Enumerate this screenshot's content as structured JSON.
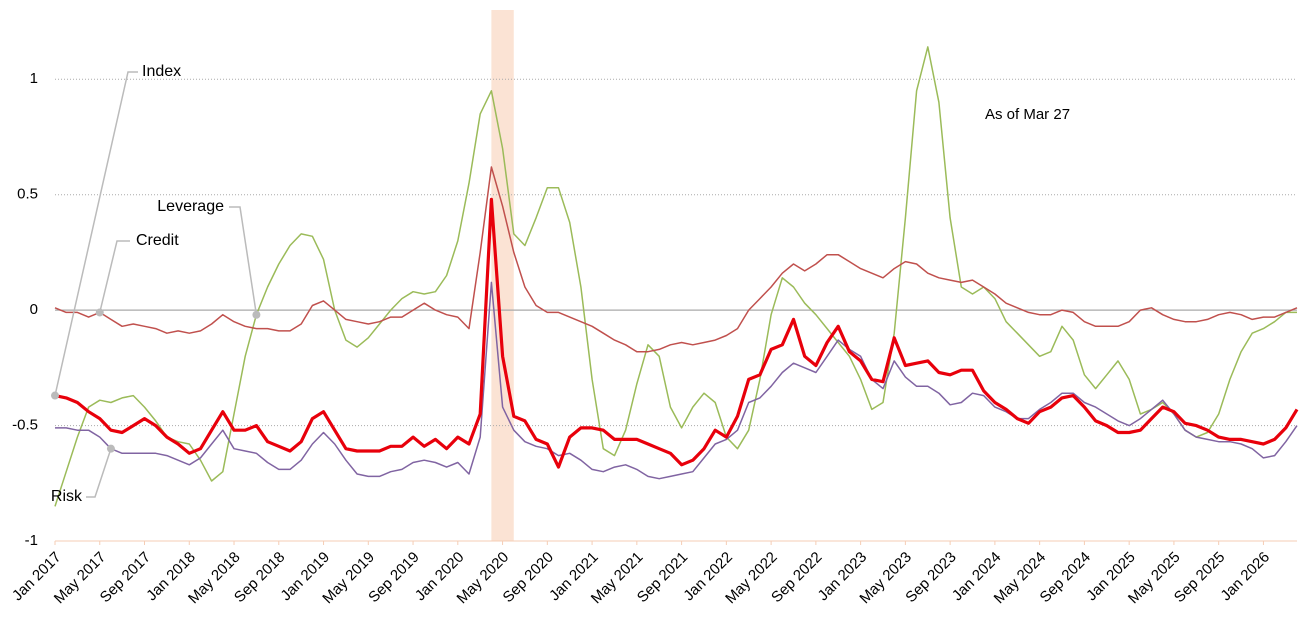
{
  "chart_data": {
    "type": "line",
    "annotation": "As of Mar 27",
    "highlight": [
      "2020-04",
      "2020-06"
    ],
    "x": [
      "2017-01",
      "2017-02",
      "2017-03",
      "2017-04",
      "2017-05",
      "2017-06",
      "2017-07",
      "2017-08",
      "2017-09",
      "2017-10",
      "2017-11",
      "2017-12",
      "2018-01",
      "2018-02",
      "2018-03",
      "2018-04",
      "2018-05",
      "2018-06",
      "2018-07",
      "2018-08",
      "2018-09",
      "2018-10",
      "2018-11",
      "2018-12",
      "2019-01",
      "2019-02",
      "2019-03",
      "2019-04",
      "2019-05",
      "2019-06",
      "2019-07",
      "2019-08",
      "2019-09",
      "2019-10",
      "2019-11",
      "2019-12",
      "2020-01",
      "2020-02",
      "2020-03",
      "2020-04",
      "2020-05",
      "2020-06",
      "2020-07",
      "2020-08",
      "2020-09",
      "2020-10",
      "2020-11",
      "2020-12",
      "2021-01",
      "2021-02",
      "2021-03",
      "2021-04",
      "2021-05",
      "2021-06",
      "2021-07",
      "2021-08",
      "2021-09",
      "2021-10",
      "2021-11",
      "2021-12",
      "2022-01",
      "2022-02",
      "2022-03",
      "2022-04",
      "2022-05",
      "2022-06",
      "2022-07",
      "2022-08",
      "2022-09",
      "2022-10",
      "2022-11",
      "2022-12",
      "2023-01",
      "2023-02",
      "2023-03",
      "2023-04",
      "2023-05",
      "2023-06",
      "2023-07",
      "2023-08",
      "2023-09",
      "2023-10",
      "2023-11",
      "2023-12",
      "2024-01",
      "2024-02",
      "2024-03",
      "2024-04",
      "2024-05",
      "2024-06",
      "2024-07",
      "2024-08",
      "2024-09",
      "2024-10",
      "2024-11",
      "2024-12",
      "2025-01",
      "2025-02",
      "2025-03",
      "2025-04",
      "2025-05",
      "2025-06",
      "2025-07",
      "2025-08",
      "2025-09",
      "2025-10",
      "2025-11",
      "2025-12",
      "2026-01",
      "2026-02",
      "2026-03",
      "2026-04"
    ],
    "series": [
      {
        "name": "Index",
        "color": "#e8000b",
        "values": [
          -0.37,
          -0.38,
          -0.4,
          -0.44,
          -0.47,
          -0.52,
          -0.53,
          -0.5,
          -0.47,
          -0.5,
          -0.55,
          -0.58,
          -0.62,
          -0.6,
          -0.52,
          -0.44,
          -0.52,
          -0.52,
          -0.5,
          -0.57,
          -0.59,
          -0.61,
          -0.57,
          -0.47,
          -0.44,
          -0.52,
          -0.6,
          -0.61,
          -0.61,
          -0.61,
          -0.59,
          -0.59,
          -0.55,
          -0.59,
          -0.56,
          -0.6,
          -0.55,
          -0.58,
          -0.45,
          0.48,
          -0.2,
          -0.46,
          -0.48,
          -0.56,
          -0.58,
          -0.68,
          -0.55,
          -0.51,
          -0.51,
          -0.52,
          -0.56,
          -0.56,
          -0.56,
          -0.58,
          -0.6,
          -0.62,
          -0.67,
          -0.65,
          -0.6,
          -0.52,
          -0.55,
          -0.46,
          -0.3,
          -0.28,
          -0.17,
          -0.15,
          -0.04,
          -0.2,
          -0.24,
          -0.14,
          -0.07,
          -0.18,
          -0.22,
          -0.3,
          -0.31,
          -0.12,
          -0.24,
          -0.23,
          -0.22,
          -0.27,
          -0.28,
          -0.26,
          -0.26,
          -0.35,
          -0.4,
          -0.43,
          -0.47,
          -0.49,
          -0.44,
          -0.42,
          -0.38,
          -0.37,
          -0.42,
          -0.48,
          -0.5,
          -0.53,
          -0.53,
          -0.52,
          -0.47,
          -0.42,
          -0.44,
          -0.49,
          -0.5,
          -0.52,
          -0.55,
          -0.56,
          -0.56,
          -0.57,
          -0.58,
          -0.56,
          -0.51,
          -0.43
        ]
      },
      {
        "name": "Credit",
        "color": "#c0504d",
        "values": [
          0.01,
          -0.01,
          -0.01,
          -0.03,
          -0.01,
          -0.04,
          -0.07,
          -0.06,
          -0.07,
          -0.08,
          -0.1,
          -0.09,
          -0.1,
          -0.09,
          -0.06,
          -0.02,
          -0.05,
          -0.07,
          -0.08,
          -0.08,
          -0.09,
          -0.09,
          -0.06,
          0.02,
          0.04,
          0.0,
          -0.04,
          -0.05,
          -0.06,
          -0.05,
          -0.03,
          -0.03,
          0.0,
          0.03,
          0.0,
          -0.02,
          -0.03,
          -0.08,
          0.25,
          0.62,
          0.45,
          0.25,
          0.1,
          0.02,
          -0.01,
          -0.01,
          -0.03,
          -0.05,
          -0.07,
          -0.1,
          -0.13,
          -0.15,
          -0.18,
          -0.18,
          -0.17,
          -0.15,
          -0.14,
          -0.15,
          -0.14,
          -0.13,
          -0.11,
          -0.08,
          0.0,
          0.05,
          0.1,
          0.16,
          0.2,
          0.17,
          0.2,
          0.24,
          0.24,
          0.21,
          0.18,
          0.16,
          0.14,
          0.18,
          0.21,
          0.2,
          0.16,
          0.14,
          0.13,
          0.12,
          0.13,
          0.1,
          0.07,
          0.03,
          0.01,
          -0.01,
          -0.02,
          -0.02,
          0.0,
          -0.01,
          -0.05,
          -0.07,
          -0.07,
          -0.07,
          -0.05,
          0.0,
          0.01,
          -0.02,
          -0.04,
          -0.05,
          -0.05,
          -0.04,
          -0.02,
          -0.01,
          -0.02,
          -0.04,
          -0.03,
          -0.03,
          -0.01,
          0.01
        ]
      },
      {
        "name": "Leverage",
        "color": "#9bbb59",
        "values": [
          -0.85,
          -0.7,
          -0.55,
          -0.42,
          -0.39,
          -0.4,
          -0.38,
          -0.37,
          -0.42,
          -0.48,
          -0.55,
          -0.57,
          -0.58,
          -0.65,
          -0.74,
          -0.7,
          -0.45,
          -0.2,
          -0.02,
          0.1,
          0.2,
          0.28,
          0.33,
          0.32,
          0.22,
          0.0,
          -0.13,
          -0.16,
          -0.12,
          -0.06,
          0.0,
          0.05,
          0.08,
          0.07,
          0.08,
          0.15,
          0.3,
          0.55,
          0.85,
          0.95,
          0.7,
          0.33,
          0.28,
          0.4,
          0.53,
          0.53,
          0.38,
          0.1,
          -0.3,
          -0.6,
          -0.63,
          -0.52,
          -0.32,
          -0.15,
          -0.2,
          -0.42,
          -0.51,
          -0.42,
          -0.36,
          -0.4,
          -0.55,
          -0.6,
          -0.52,
          -0.3,
          -0.02,
          0.14,
          0.1,
          0.03,
          -0.02,
          -0.08,
          -0.14,
          -0.2,
          -0.3,
          -0.43,
          -0.4,
          -0.1,
          0.4,
          0.95,
          1.14,
          0.9,
          0.4,
          0.1,
          0.07,
          0.1,
          0.05,
          -0.05,
          -0.1,
          -0.15,
          -0.2,
          -0.18,
          -0.07,
          -0.13,
          -0.28,
          -0.34,
          -0.28,
          -0.22,
          -0.3,
          -0.45,
          -0.43,
          -0.4,
          -0.45,
          -0.52,
          -0.55,
          -0.53,
          -0.45,
          -0.3,
          -0.18,
          -0.1,
          -0.08,
          -0.05,
          -0.01,
          -0.01
        ]
      },
      {
        "name": "Risk",
        "color": "#8064a2",
        "values": [
          -0.51,
          -0.51,
          -0.52,
          -0.52,
          -0.55,
          -0.6,
          -0.62,
          -0.62,
          -0.62,
          -0.62,
          -0.63,
          -0.65,
          -0.67,
          -0.64,
          -0.58,
          -0.52,
          -0.6,
          -0.61,
          -0.62,
          -0.66,
          -0.69,
          -0.69,
          -0.65,
          -0.58,
          -0.53,
          -0.58,
          -0.65,
          -0.71,
          -0.72,
          -0.72,
          -0.7,
          -0.69,
          -0.66,
          -0.65,
          -0.66,
          -0.68,
          -0.66,
          -0.71,
          -0.55,
          0.12,
          -0.42,
          -0.52,
          -0.57,
          -0.59,
          -0.6,
          -0.63,
          -0.62,
          -0.65,
          -0.69,
          -0.7,
          -0.68,
          -0.67,
          -0.69,
          -0.72,
          -0.73,
          -0.72,
          -0.71,
          -0.7,
          -0.64,
          -0.58,
          -0.56,
          -0.52,
          -0.4,
          -0.38,
          -0.33,
          -0.27,
          -0.23,
          -0.25,
          -0.27,
          -0.2,
          -0.13,
          -0.17,
          -0.2,
          -0.3,
          -0.34,
          -0.22,
          -0.29,
          -0.33,
          -0.33,
          -0.36,
          -0.41,
          -0.4,
          -0.36,
          -0.37,
          -0.42,
          -0.44,
          -0.47,
          -0.47,
          -0.43,
          -0.4,
          -0.36,
          -0.36,
          -0.4,
          -0.42,
          -0.45,
          -0.48,
          -0.5,
          -0.47,
          -0.43,
          -0.39,
          -0.45,
          -0.52,
          -0.55,
          -0.56,
          -0.57,
          -0.57,
          -0.58,
          -0.6,
          -0.64,
          -0.63,
          -0.57,
          -0.5
        ]
      }
    ],
    "xlim": [
      "2017-01",
      "2026-04"
    ],
    "xticks": [
      {
        "value": "2017-01",
        "label": "Jan 2017"
      },
      {
        "value": "2017-05",
        "label": "May 2017"
      },
      {
        "value": "2017-09",
        "label": "Sep 2017"
      },
      {
        "value": "2018-01",
        "label": "Jan 2018"
      },
      {
        "value": "2018-05",
        "label": "May 2018"
      },
      {
        "value": "2018-09",
        "label": "Sep 2018"
      },
      {
        "value": "2019-01",
        "label": "Jan 2019"
      },
      {
        "value": "2019-05",
        "label": "May 2019"
      },
      {
        "value": "2019-09",
        "label": "Sep 2019"
      },
      {
        "value": "2020-01",
        "label": "Jan 2020"
      },
      {
        "value": "2020-05",
        "label": "May 2020"
      },
      {
        "value": "2020-09",
        "label": "Sep 2020"
      },
      {
        "value": "2021-01",
        "label": "Jan 2021"
      },
      {
        "value": "2021-05",
        "label": "May 2021"
      },
      {
        "value": "2021-09",
        "label": "Sep 2021"
      },
      {
        "value": "2022-01",
        "label": "Jan 2022"
      },
      {
        "value": "2022-05",
        "label": "May 2022"
      },
      {
        "value": "2022-09",
        "label": "Sep 2022"
      },
      {
        "value": "2023-01",
        "label": "Jan 2023"
      },
      {
        "value": "2023-05",
        "label": "May 2023"
      },
      {
        "value": "2023-09",
        "label": "Sep 2023"
      },
      {
        "value": "2024-01",
        "label": "Jan 2024"
      },
      {
        "value": "2024-05",
        "label": "May 2024"
      },
      {
        "value": "2024-09",
        "label": "Sep 2024"
      },
      {
        "value": "2025-01",
        "label": "Jan 2025"
      },
      {
        "value": "2025-05",
        "label": "May 2025"
      },
      {
        "value": "2025-09",
        "label": "Sep 2025"
      },
      {
        "value": "2026-01",
        "label": "Jan 2026"
      }
    ],
    "ylim": [
      -1,
      1.3
    ],
    "yticks": [
      -1,
      -0.5,
      0,
      0.5,
      1
    ],
    "grid": true
  }
}
